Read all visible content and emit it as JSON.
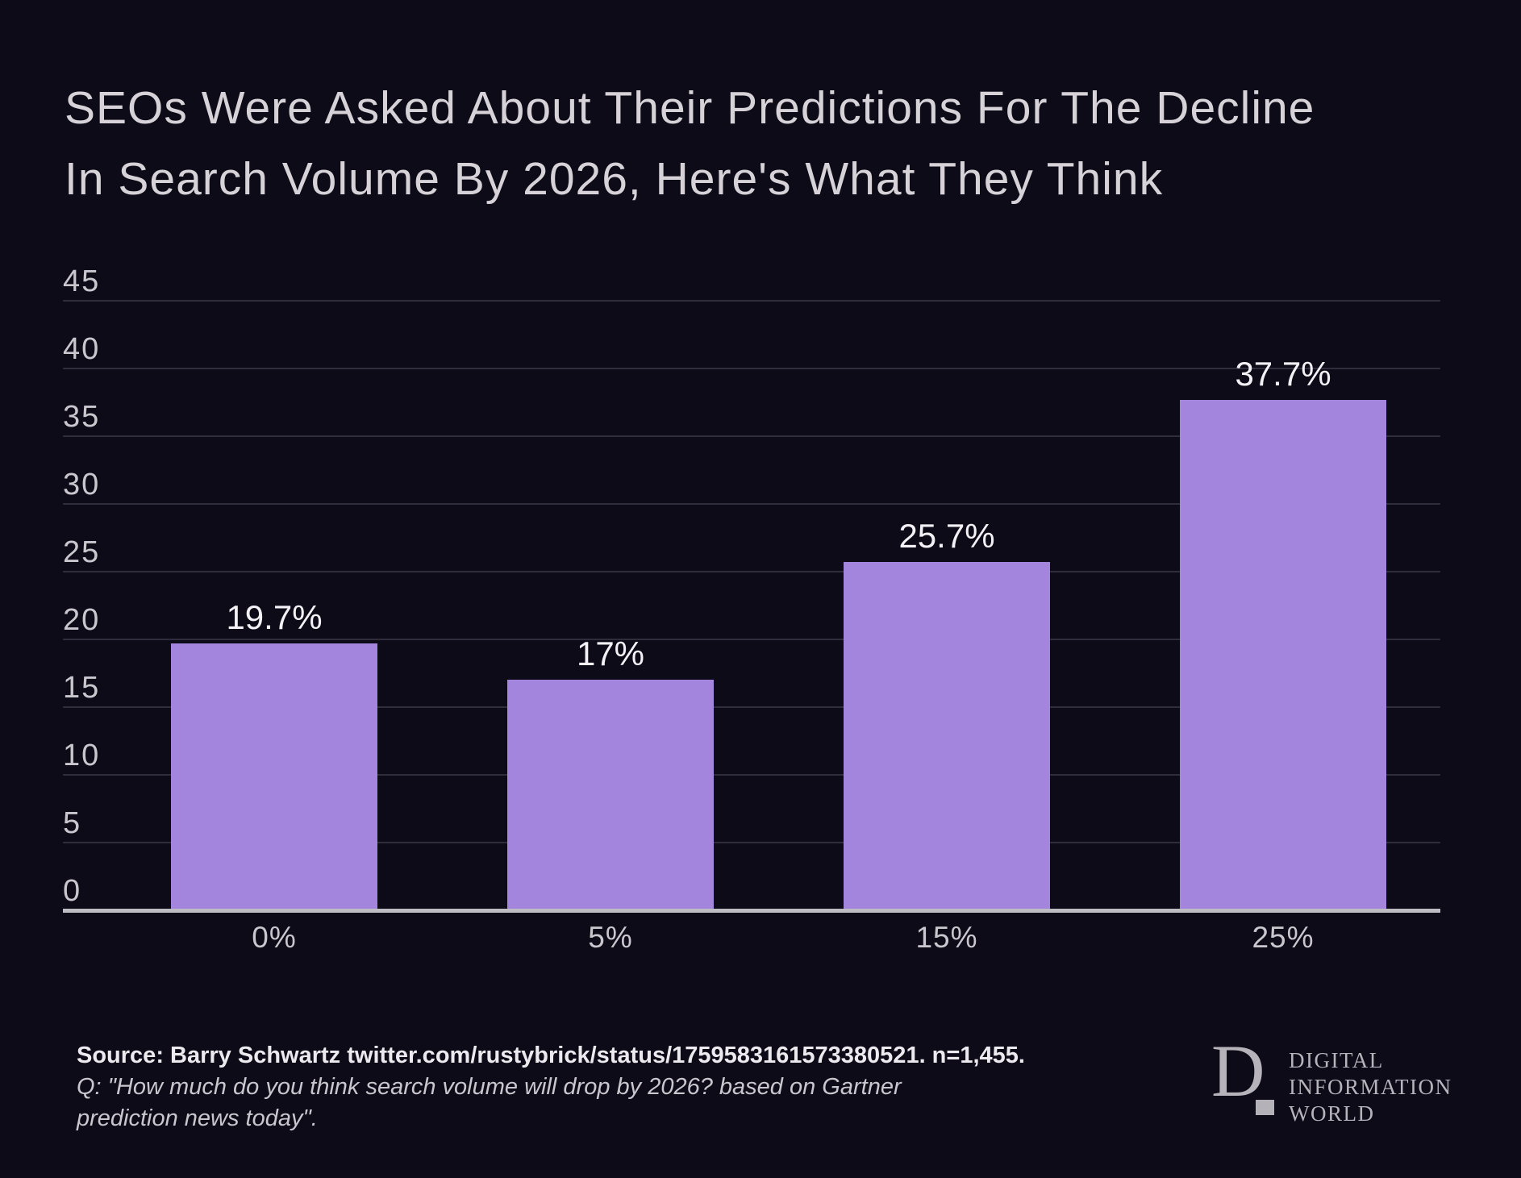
{
  "title": {
    "line1": "SEOs Were Asked About Their Predictions For The Decline",
    "line2": "In Search Volume By 2026, Here's What They Think"
  },
  "chart_data": {
    "type": "bar",
    "title": "SEOs Were Asked About Their Predictions For The Decline In Search Volume By 2026, Here's What They Think",
    "categories": [
      "0%",
      "5%",
      "15%",
      "25%"
    ],
    "values": [
      19.7,
      17,
      25.7,
      37.7
    ],
    "value_labels": [
      "19.7%",
      "17%",
      "25.7%",
      "37.7%"
    ],
    "xlabel": "",
    "ylabel": "",
    "ylim": [
      0,
      45
    ],
    "yticks": [
      0,
      5,
      10,
      15,
      20,
      25,
      30,
      35,
      40,
      45
    ],
    "grid": true,
    "legend": "none"
  },
  "footer": {
    "source_line": "Source: Barry Schwartz twitter.com/rustybrick/status/1759583161573380521. n=1,455.",
    "q_line1": "Q: \"How much do you think search volume will drop by 2026? based on Gartner",
    "q_line2": "prediction news today\"."
  },
  "logo": {
    "monogram": "D",
    "line1": "DIGITAL",
    "line2": "INFORMATION",
    "line3": "WORLD"
  },
  "colors": {
    "background": "#0d0b17",
    "bar": "#a485de",
    "title_text": "#d6d2d8",
    "axis_text": "#c9c6cd",
    "value_text": "#f3f1f5",
    "gridline": "#2f2d3b",
    "baseline": "#bfbdc4",
    "logo_text": "#b6b3bb"
  }
}
